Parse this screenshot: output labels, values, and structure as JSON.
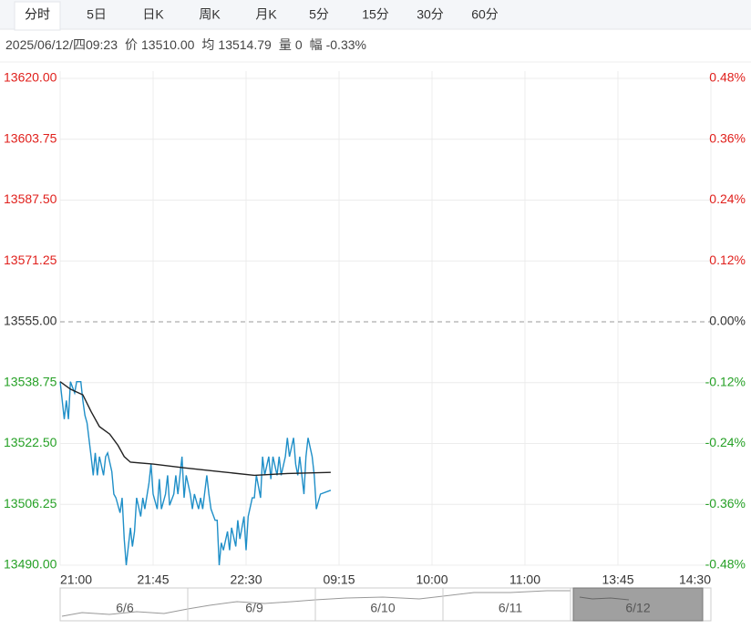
{
  "tabs": [
    "分时",
    "5日",
    "日K",
    "周K",
    "月K",
    "5分",
    "15分",
    "30分",
    "60分"
  ],
  "info": {
    "datetime": "2025/06/12/四09:23",
    "price_label": "价",
    "price": "13510.00",
    "avg_label": "均",
    "avg": "13514.79",
    "vol_label": "量",
    "vol": "0",
    "amp_label": "幅",
    "amp": "-0.33%"
  },
  "chart_data": {
    "type": "line",
    "xlim": [
      0,
      315
    ],
    "xticks": [
      {
        "value": 0,
        "label": "21:00"
      },
      {
        "value": 45,
        "label": "21:45"
      },
      {
        "value": 90,
        "label": "22:30"
      },
      {
        "value": 135,
        "label": "09:15"
      },
      {
        "value": 180,
        "label": "10:00"
      },
      {
        "value": 225,
        "label": "11:00"
      },
      {
        "value": 270,
        "label": "13:45"
      },
      {
        "value": 315,
        "label": "14:30"
      }
    ],
    "ylim": [
      13490,
      13620
    ],
    "yticks": [
      {
        "value": 13620,
        "label": "13620.00"
      },
      {
        "value": 13603.75,
        "label": "13603.75"
      },
      {
        "value": 13587.5,
        "label": "13587.50"
      },
      {
        "value": 13571.25,
        "label": "13571.25"
      },
      {
        "value": 13555,
        "label": "13555.00"
      },
      {
        "value": 13538.75,
        "label": "13538.75"
      },
      {
        "value": 13522.5,
        "label": "13522.50"
      },
      {
        "value": 13506.25,
        "label": "13506.25"
      },
      {
        "value": 13490,
        "label": "13490.00"
      }
    ],
    "y2lim": [
      -0.48,
      0.48
    ],
    "y2ticks": [
      {
        "value": 0.48,
        "label": "0.48%"
      },
      {
        "value": 0.36,
        "label": "0.36%"
      },
      {
        "value": 0.24,
        "label": "0.24%"
      },
      {
        "value": 0.12,
        "label": "0.12%"
      },
      {
        "value": 0,
        "label": "0.00%"
      },
      {
        "value": -0.12,
        "label": "-0.12%"
      },
      {
        "value": -0.24,
        "label": "-0.24%"
      },
      {
        "value": -0.36,
        "label": "-0.36%"
      },
      {
        "value": -0.48,
        "label": "-0.48%"
      }
    ],
    "series": [
      {
        "color": "#1f8fc8",
        "x": [
          0,
          2,
          3,
          4,
          5,
          7,
          8,
          10,
          11,
          12,
          13,
          15,
          16,
          17,
          18,
          19,
          21,
          22,
          23,
          25,
          26,
          27,
          29,
          30,
          31,
          32,
          34,
          35,
          36,
          37,
          39,
          40,
          41,
          43,
          44,
          45,
          47,
          48,
          49,
          51,
          52,
          53,
          55,
          56,
          57,
          59,
          60,
          61,
          63,
          64,
          65,
          67,
          68,
          69,
          71,
          72,
          73,
          75,
          76,
          77,
          78,
          79,
          81,
          82,
          83,
          85,
          86,
          87,
          89,
          90,
          91,
          93,
          94,
          95,
          97,
          98,
          99,
          101,
          102,
          103,
          105,
          106,
          107,
          109,
          110,
          111,
          113,
          114,
          115,
          116,
          118,
          119,
          120,
          122,
          123,
          124,
          126,
          131
        ],
        "values": [
          13539,
          13529,
          13534,
          13529,
          13539,
          13536,
          13539,
          13539,
          13534,
          13530,
          13528,
          13519,
          13514,
          13520,
          13514,
          13519,
          13514,
          13519,
          13520,
          13515,
          13509,
          13508,
          13504,
          13508,
          13497,
          13490,
          13500,
          13495,
          13499,
          13508,
          13503,
          13508,
          13505,
          13512,
          13517,
          13509,
          13505,
          13513,
          13505,
          13509,
          13514,
          13506,
          13509,
          13514,
          13509,
          13519,
          13508,
          13514,
          13509,
          13505,
          13509,
          13505,
          13508,
          13505,
          13514,
          13509,
          13505,
          13502,
          13502,
          13490,
          13496,
          13494,
          13499,
          13494,
          13500,
          13495,
          13502,
          13497,
          13503,
          13494,
          13503,
          13508,
          13508,
          13514,
          13508,
          13519,
          13514,
          13519,
          13513,
          13519,
          13514,
          13519,
          13514,
          13519,
          13524,
          13519,
          13524,
          13517,
          13514,
          13519,
          13509,
          13519,
          13524,
          13519,
          13514,
          13505,
          13509,
          13510
        ]
      },
      {
        "color": "#222222",
        "x": [
          0,
          5,
          11,
          15,
          19,
          24,
          28,
          31,
          34,
          45,
          60,
          77,
          94,
          110,
          131
        ],
        "values": [
          13539,
          13537,
          13535.5,
          13531,
          13527,
          13525,
          13522,
          13519,
          13517.5,
          13517,
          13516,
          13515,
          13514,
          13514.5,
          13514.79
        ]
      }
    ]
  },
  "navigator": [
    "6/6",
    "6/9",
    "6/10",
    "6/11",
    "6/12"
  ]
}
